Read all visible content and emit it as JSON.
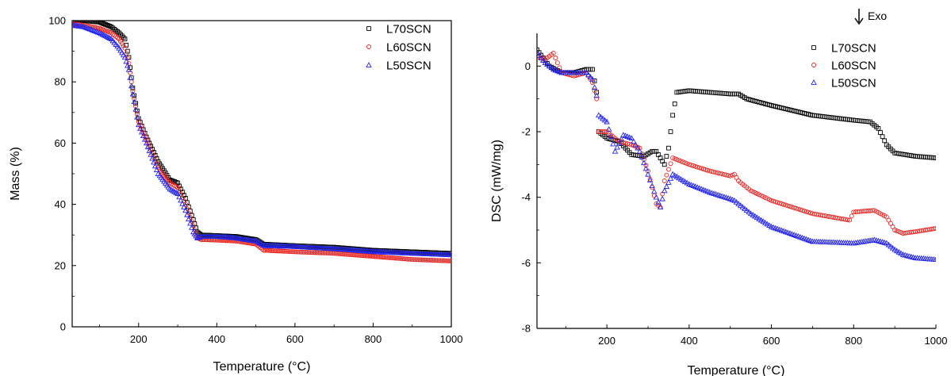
{
  "colors": {
    "L70SCN": "#000000",
    "L60SCN": "#e8231f",
    "L50SCN": "#2424e8"
  },
  "chart_data": [
    {
      "type": "scatter",
      "xlabel": "Temperature (°C)",
      "ylabel": "Mass (%)",
      "xlim": [
        30,
        1000
      ],
      "ylim": [
        0,
        100
      ],
      "xticks": [
        "200",
        "400",
        "600",
        "800",
        "1000"
      ],
      "yticks": [
        "0",
        "20",
        "40",
        "60",
        "80",
        "100"
      ],
      "legend_position": "top-right",
      "series": [
        {
          "name": "L70SCN",
          "marker": "square",
          "x": [
            30,
            60,
            100,
            130,
            150,
            165,
            175,
            185,
            200,
            220,
            250,
            280,
            300,
            320,
            340,
            350,
            360,
            400,
            450,
            500,
            520,
            600,
            700,
            800,
            900,
            1000
          ],
          "y": [
            100,
            100,
            99.5,
            98,
            96,
            94,
            88,
            78,
            68,
            62,
            54,
            48,
            47,
            42,
            35,
            31,
            30,
            29.8,
            29.5,
            28.5,
            27,
            26.5,
            26,
            25,
            24.5,
            24
          ]
        },
        {
          "name": "L60SCN",
          "marker": "circle",
          "x": [
            30,
            60,
            100,
            130,
            150,
            165,
            175,
            185,
            200,
            220,
            250,
            280,
            300,
            320,
            340,
            350,
            360,
            400,
            450,
            500,
            520,
            600,
            700,
            800,
            900,
            1000
          ],
          "y": [
            99,
            98.5,
            97.5,
            96,
            94,
            91,
            86,
            77,
            67,
            61,
            52,
            47,
            45.5,
            40,
            33,
            29,
            28.5,
            28.3,
            28,
            27,
            25,
            24.5,
            24,
            23,
            22,
            21.5
          ]
        },
        {
          "name": "L50SCN",
          "marker": "triangle",
          "x": [
            30,
            60,
            100,
            130,
            150,
            165,
            175,
            185,
            200,
            220,
            250,
            280,
            300,
            320,
            340,
            350,
            360,
            400,
            450,
            500,
            520,
            600,
            700,
            800,
            900,
            1000
          ],
          "y": [
            98.5,
            98,
            96,
            94,
            91,
            88,
            84,
            76,
            66,
            60,
            50,
            45,
            43.5,
            38,
            31,
            29,
            29.5,
            29.5,
            29,
            28,
            26.5,
            26.2,
            25.5,
            24.5,
            24,
            23.5
          ]
        }
      ]
    },
    {
      "type": "scatter",
      "xlabel": "Temperature (°C)",
      "ylabel": "DSC (mW/mg)",
      "xlim": [
        30,
        1000
      ],
      "ylim": [
        -8,
        1
      ],
      "xticks": [
        "200",
        "400",
        "600",
        "800",
        "1000"
      ],
      "yticks": [
        "-8",
        "-6",
        "-4",
        "-2",
        "0"
      ],
      "annotation": "Exo",
      "legend_position": "top-right",
      "series": [
        {
          "name": "L70SCN",
          "marker": "square",
          "x": [
            30,
            60,
            90,
            120,
            150,
            165,
            175,
            180,
            200,
            230,
            260,
            290,
            310,
            320,
            330,
            340,
            350,
            360,
            370,
            400,
            450,
            500,
            520,
            540,
            600,
            700,
            800,
            840,
            860,
            880,
            900,
            950,
            1000
          ],
          "y": [
            0.5,
            0,
            -0.2,
            -0.2,
            -0.1,
            -0.1,
            -0.8,
            -2.0,
            -2.2,
            -2.3,
            -2.7,
            -2.75,
            -2.6,
            -2.6,
            -2.8,
            -3.0,
            -2.5,
            -1.5,
            -0.8,
            -0.75,
            -0.8,
            -0.85,
            -0.85,
            -1.0,
            -1.2,
            -1.5,
            -1.65,
            -1.7,
            -1.9,
            -2.4,
            -2.65,
            -2.75,
            -2.8
          ]
        },
        {
          "name": "L60SCN",
          "marker": "circle",
          "x": [
            30,
            50,
            70,
            90,
            120,
            150,
            165,
            175,
            180,
            200,
            230,
            260,
            280,
            300,
            320,
            330,
            340,
            360,
            400,
            450,
            500,
            510,
            520,
            550,
            600,
            700,
            790,
            800,
            850,
            880,
            900,
            920,
            950,
            1000
          ],
          "y": [
            0.3,
            0.2,
            0.4,
            -0.2,
            -0.3,
            -0.2,
            -0.5,
            -1.0,
            -2.0,
            -2.0,
            -2.3,
            -2.4,
            -2.5,
            -3.2,
            -4.2,
            -4.3,
            -3.5,
            -2.8,
            -3.0,
            -3.2,
            -3.35,
            -3.3,
            -3.5,
            -3.8,
            -4.1,
            -4.5,
            -4.7,
            -4.45,
            -4.4,
            -4.6,
            -5.0,
            -5.1,
            -5.05,
            -4.95
          ]
        },
        {
          "name": "L50SCN",
          "marker": "triangle",
          "x": [
            30,
            50,
            70,
            90,
            120,
            150,
            165,
            175,
            180,
            200,
            220,
            240,
            260,
            280,
            300,
            320,
            330,
            340,
            360,
            400,
            450,
            500,
            510,
            520,
            550,
            600,
            700,
            800,
            850,
            880,
            900,
            920,
            950,
            1000
          ],
          "y": [
            0.4,
            0.1,
            -0.1,
            -0.2,
            -0.2,
            -0.2,
            -0.4,
            -0.9,
            -1.5,
            -1.7,
            -2.6,
            -2.1,
            -2.2,
            -2.6,
            -3.3,
            -4.0,
            -4.3,
            -3.8,
            -3.3,
            -3.6,
            -3.85,
            -4.05,
            -4.1,
            -4.2,
            -4.5,
            -4.9,
            -5.35,
            -5.4,
            -5.3,
            -5.4,
            -5.6,
            -5.75,
            -5.85,
            -5.9
          ]
        }
      ]
    }
  ]
}
